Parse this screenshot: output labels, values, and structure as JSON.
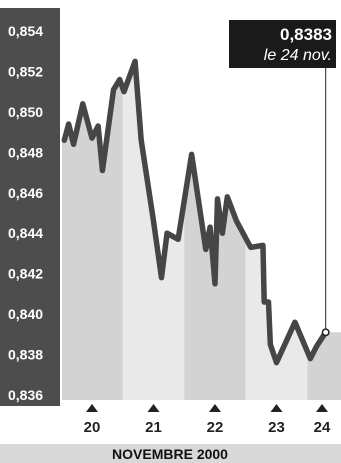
{
  "chart_data": {
    "type": "area",
    "xlabel": "NOVEMBRE 2000",
    "x_ticks": [
      "20",
      "21",
      "22",
      "23",
      "24"
    ],
    "y_ticks": [
      "0,854",
      "0,852",
      "0,850",
      "0,848",
      "0,846",
      "0,844",
      "0,842",
      "0,840",
      "0,838",
      "0,836"
    ],
    "ylim": [
      0.836,
      0.855
    ],
    "grid": false,
    "callout": {
      "value": "0,8383",
      "date": "le 24 nov."
    },
    "series": [
      {
        "values": [
          [
            19.55,
            0.8486
          ],
          [
            19.62,
            0.8494
          ],
          [
            19.7,
            0.8484
          ],
          [
            19.85,
            0.8504
          ],
          [
            20.0,
            0.8487
          ],
          [
            20.1,
            0.8493
          ],
          [
            20.17,
            0.8471
          ],
          [
            20.35,
            0.8511
          ],
          [
            20.45,
            0.8516
          ],
          [
            20.52,
            0.851
          ],
          [
            20.7,
            0.8525
          ],
          [
            20.8,
            0.8486
          ],
          [
            21.0,
            0.8446
          ],
          [
            21.13,
            0.8418
          ],
          [
            21.22,
            0.844
          ],
          [
            21.4,
            0.8437
          ],
          [
            21.62,
            0.8479
          ],
          [
            21.85,
            0.8432
          ],
          [
            21.92,
            0.8443
          ],
          [
            22.0,
            0.8415
          ],
          [
            22.04,
            0.8457
          ],
          [
            22.12,
            0.844
          ],
          [
            22.2,
            0.8458
          ],
          [
            22.35,
            0.8446
          ],
          [
            22.58,
            0.8433
          ],
          [
            22.78,
            0.8434
          ],
          [
            22.8,
            0.8406
          ],
          [
            22.87,
            0.8406
          ],
          [
            22.9,
            0.8385
          ],
          [
            23.0,
            0.8376
          ],
          [
            23.3,
            0.8396
          ],
          [
            23.55,
            0.8378
          ],
          [
            23.65,
            0.8384
          ],
          [
            23.8,
            0.8391
          ]
        ]
      }
    ],
    "colors": {
      "axis_band": "#4d4d4d",
      "band_dark": "#d3d3d3",
      "band_light": "#e9e9e9",
      "line": "#464646",
      "callout_bg": "#1a1a1a",
      "xlabel_bg": "#d8d8d8"
    }
  }
}
